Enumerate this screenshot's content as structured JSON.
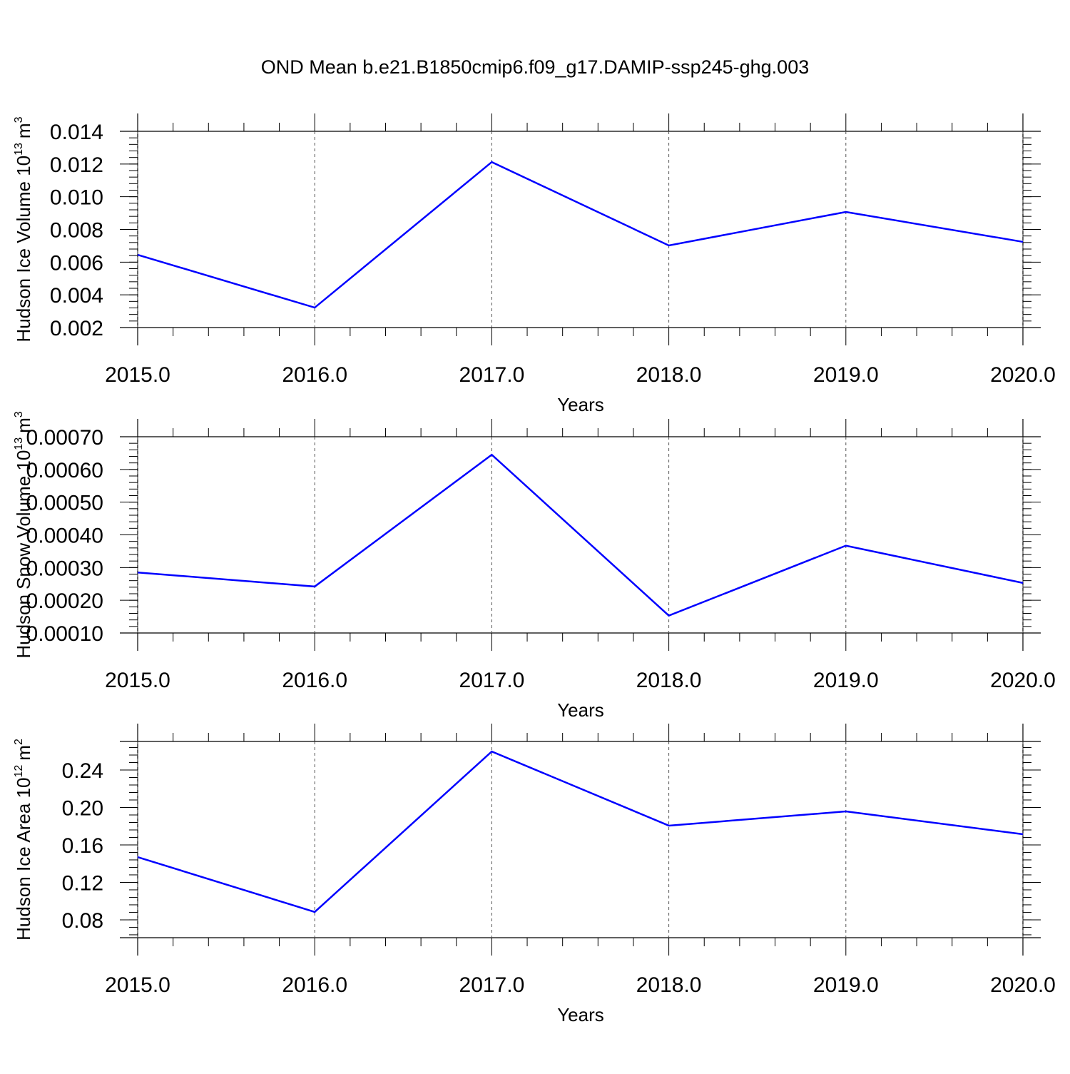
{
  "title": "OND Mean b.e21.B1850cmip6.f09_g17.DAMIP-ssp245-ghg.003",
  "chart_data": [
    {
      "type": "line",
      "xlabel": "Years",
      "ylabel": {
        "text": "Hudson Ice Volume 10",
        "exponent": "13",
        "unit": "m",
        "unit_exponent": "3"
      },
      "x": [
        2015,
        2016,
        2017,
        2018,
        2019,
        2020
      ],
      "values": [
        0.00645,
        0.00322,
        0.01212,
        0.00702,
        0.00907,
        0.00724
      ],
      "color": "#0000ff",
      "grid": true,
      "xlim": [
        2015,
        2020
      ],
      "xticks": [
        {
          "value": 2015,
          "label": "2015.0"
        },
        {
          "value": 2016,
          "label": "2016.0"
        },
        {
          "value": 2017,
          "label": "2017.0"
        },
        {
          "value": 2018,
          "label": "2018.0"
        },
        {
          "value": 2019,
          "label": "2019.0"
        },
        {
          "value": 2020,
          "label": "2020.0"
        }
      ],
      "ylim": [
        0.002,
        0.014
      ],
      "yticks": [
        0.014,
        0.012,
        {
          "value": 0.01,
          "label": "0.010"
        },
        0.008,
        0.006,
        0.004,
        0.002
      ]
    },
    {
      "type": "line",
      "xlabel": "Years",
      "ylabel": {
        "text": "Hudson Snow Volume 10",
        "exponent": "13",
        "unit": "m",
        "unit_exponent": "3"
      },
      "x": [
        2015,
        2016,
        2017,
        2018,
        2019,
        2020
      ],
      "values": [
        0.000285,
        0.000242,
        0.000645,
        0.000153,
        0.000367,
        0.000253
      ],
      "color": "#0000ff",
      "grid": true,
      "xlim": [
        2015,
        2020
      ],
      "xticks": [
        {
          "value": 2015,
          "label": "2015.0"
        },
        {
          "value": 2016,
          "label": "2016.0"
        },
        {
          "value": 2017,
          "label": "2017.0"
        },
        {
          "value": 2018,
          "label": "2018.0"
        },
        {
          "value": 2019,
          "label": "2019.0"
        },
        {
          "value": 2020,
          "label": "2020.0"
        }
      ],
      "ylim": [
        0.0001,
        0.0007
      ],
      "yticks": [
        {
          "value": 0.0007,
          "label": "0.00070"
        },
        {
          "value": 0.0006,
          "label": "0.00060"
        },
        {
          "value": 0.0005,
          "label": "0.00050"
        },
        {
          "value": 0.0004,
          "label": "0.00040"
        },
        {
          "value": 0.0003,
          "label": "0.00030"
        },
        {
          "value": 0.0002,
          "label": "0.00020"
        },
        {
          "value": 0.0001,
          "label": "0.00010"
        }
      ]
    },
    {
      "type": "line",
      "xlabel": "Years",
      "ylabel": {
        "text": "Hudson Ice Area 10",
        "exponent": "12",
        "unit": "m",
        "unit_exponent": "2"
      },
      "x": [
        2015,
        2016,
        2017,
        2018,
        2019,
        2020
      ],
      "values": [
        0.147,
        0.0884,
        0.2598,
        0.1806,
        0.1958,
        0.1714
      ],
      "color": "#0000ff",
      "grid": true,
      "xlim": [
        2015,
        2020
      ],
      "xticks": [
        {
          "value": 2015,
          "label": "2015.0"
        },
        {
          "value": 2016,
          "label": "2016.0"
        },
        {
          "value": 2017,
          "label": "2017.0"
        },
        {
          "value": 2018,
          "label": "2018.0"
        },
        {
          "value": 2019,
          "label": "2019.0"
        },
        {
          "value": 2020,
          "label": "2020.0"
        }
      ],
      "ylim": [
        0.0609,
        0.2705
      ],
      "yticks": [
        0.24,
        {
          "value": 0.2,
          "label": "0.20"
        },
        0.16,
        0.12,
        0.08
      ]
    }
  ]
}
